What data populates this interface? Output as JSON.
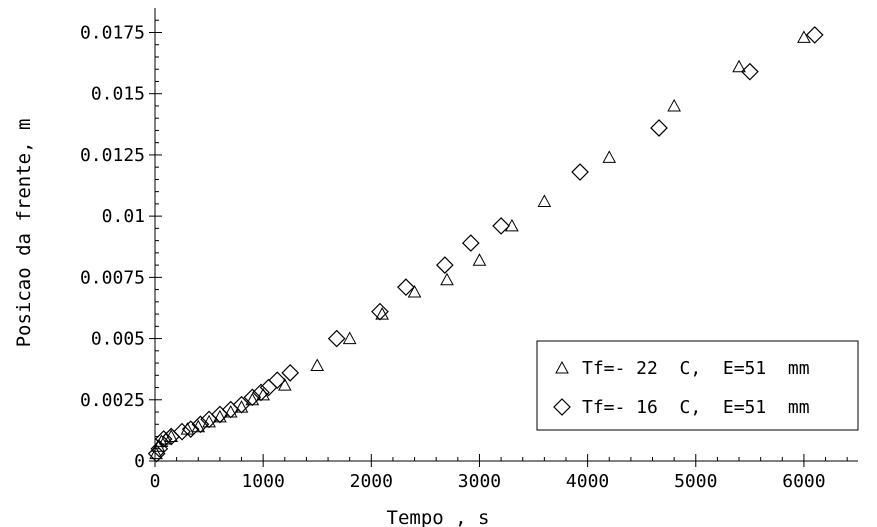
{
  "chart_data": {
    "type": "scatter",
    "title": "",
    "xlabel": "Tempo , s",
    "ylabel": "Posicao da frente, m",
    "xlim": [
      0,
      6500
    ],
    "ylim": [
      0,
      0.0185
    ],
    "x_ticks": [
      0,
      1000,
      2000,
      3000,
      4000,
      5000,
      6000
    ],
    "x_tick_labels": [
      "0",
      "1000",
      "2000",
      "3000",
      "4000",
      "5000",
      "6000"
    ],
    "y_ticks": [
      0,
      0.0025,
      0.005,
      0.0075,
      0.01,
      0.0125,
      0.015,
      0.0175
    ],
    "y_tick_labels": [
      "0",
      "0.0025",
      "0.005",
      "0.0075",
      "0.01",
      "0.0125",
      "0.015",
      "0.0175"
    ],
    "grid": false,
    "legend_position": "bottom-right",
    "series": [
      {
        "name": "Tf=- 22  C,  E=51  mm",
        "marker": "triangle",
        "points": [
          [
            10,
            0.0003
          ],
          [
            30,
            0.0006
          ],
          [
            60,
            0.0008
          ],
          [
            100,
            0.0009
          ],
          [
            150,
            0.001
          ],
          [
            300,
            0.0013
          ],
          [
            400,
            0.0014
          ],
          [
            500,
            0.0016
          ],
          [
            600,
            0.0018
          ],
          [
            700,
            0.002
          ],
          [
            800,
            0.0022
          ],
          [
            900,
            0.0025
          ],
          [
            1000,
            0.0027
          ],
          [
            1200,
            0.0031
          ],
          [
            1500,
            0.0039
          ],
          [
            1800,
            0.005
          ],
          [
            2100,
            0.006
          ],
          [
            2400,
            0.0069
          ],
          [
            2700,
            0.0074
          ],
          [
            3000,
            0.0082
          ],
          [
            3300,
            0.0096
          ],
          [
            3600,
            0.0106
          ],
          [
            4200,
            0.0124
          ],
          [
            4800,
            0.0145
          ],
          [
            5400,
            0.0161
          ],
          [
            6000,
            0.0173
          ]
        ]
      },
      {
        "name": "Tf=- 16  C,  E=51  mm",
        "marker": "diamond",
        "points": [
          [
            15,
            0.0003
          ],
          [
            40,
            0.0005
          ],
          [
            80,
            0.0009
          ],
          [
            150,
            0.001
          ],
          [
            250,
            0.0012
          ],
          [
            330,
            0.0013
          ],
          [
            420,
            0.0015
          ],
          [
            500,
            0.0017
          ],
          [
            600,
            0.0019
          ],
          [
            700,
            0.0021
          ],
          [
            800,
            0.0023
          ],
          [
            900,
            0.0026
          ],
          [
            980,
            0.0028
          ],
          [
            1050,
            0.003
          ],
          [
            1130,
            0.0033
          ],
          [
            1250,
            0.0036
          ],
          [
            1680,
            0.005
          ],
          [
            2080,
            0.0061
          ],
          [
            2320,
            0.0071
          ],
          [
            2680,
            0.008
          ],
          [
            2920,
            0.0089
          ],
          [
            3200,
            0.0096
          ],
          [
            3930,
            0.0118
          ],
          [
            4660,
            0.0136
          ],
          [
            5500,
            0.0159
          ],
          [
            6100,
            0.0174
          ]
        ]
      }
    ]
  }
}
